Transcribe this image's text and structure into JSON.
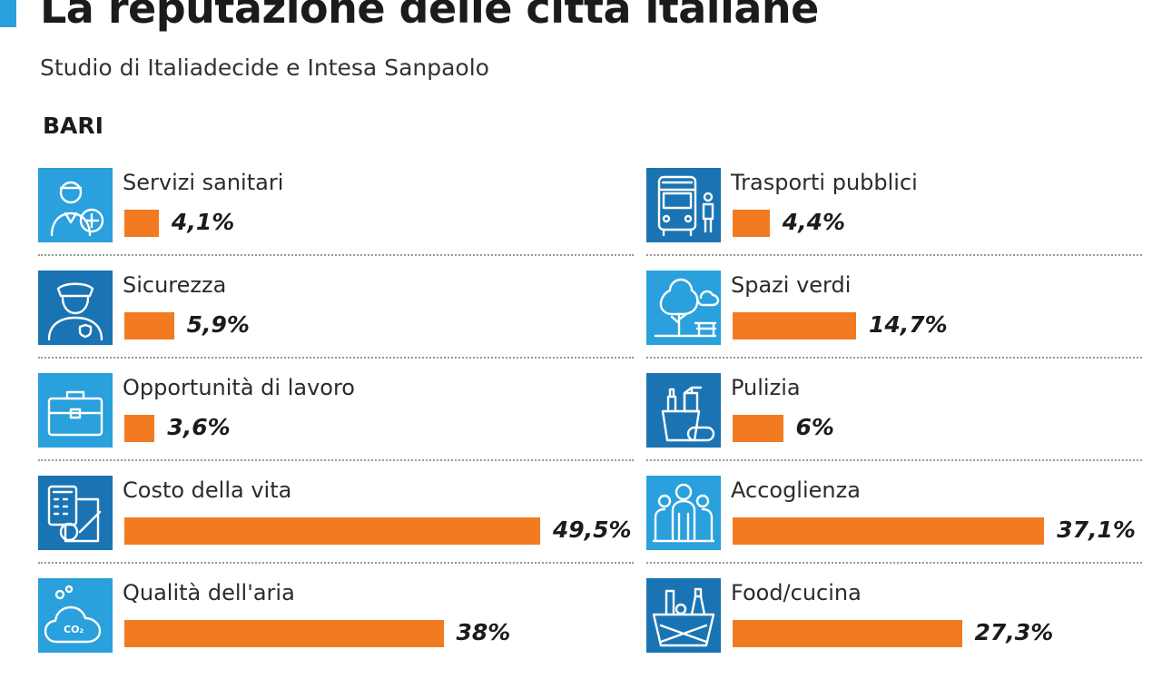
{
  "header": {
    "title": "La reputazione delle città italiane",
    "subtitle": "Studio di Italiadecide e Intesa Sanpaolo",
    "city": "BARI"
  },
  "colors": {
    "accent": "#2aa0dc",
    "bar": "#f27b21",
    "icon_light": "#2aa0dc",
    "icon_dark": "#1a74b3"
  },
  "chart_data": {
    "type": "bar",
    "title": "La reputazione delle città italiane",
    "subtitle": "Studio di Italiadecide e Intesa Sanpaolo",
    "unit": "%",
    "categories": [
      "Servizi sanitari",
      "Sicurezza",
      "Opportunità di lavoro",
      "Costo della vita",
      "Qualità dell'aria",
      "Trasporti pubblici",
      "Spazi verdi",
      "Pulizia",
      "Accoglienza",
      "Food/cucina"
    ],
    "values": [
      4.1,
      5.9,
      3.6,
      49.5,
      38,
      4.4,
      14.7,
      6,
      37.1,
      27.3
    ],
    "value_labels": [
      "4,1%",
      "5,9%",
      "3,6%",
      "49,5%",
      "38%",
      "4,4%",
      "14,7%",
      "6%",
      "37,1%",
      "27,3%"
    ],
    "xlim": [
      0,
      50
    ],
    "legend": "none",
    "grid": false
  },
  "items": {
    "left": [
      {
        "label": "Servizi sanitari",
        "icon": "doctor-icon",
        "tone": "light"
      },
      {
        "label": "Sicurezza",
        "icon": "police-officer-icon",
        "tone": "dark"
      },
      {
        "label": "Opportunità di lavoro",
        "icon": "briefcase-icon",
        "tone": "light"
      },
      {
        "label": "Costo della vita",
        "icon": "calculator-document-icon",
        "tone": "dark"
      },
      {
        "label": "Qualità dell'aria",
        "icon": "co2-cloud-icon",
        "tone": "light"
      }
    ],
    "right": [
      {
        "label": "Trasporti pubblici",
        "icon": "bus-icon",
        "tone": "dark"
      },
      {
        "label": "Spazi verdi",
        "icon": "park-tree-icon",
        "tone": "light"
      },
      {
        "label": "Pulizia",
        "icon": "cleaning-bucket-icon",
        "tone": "dark"
      },
      {
        "label": "Accoglienza",
        "icon": "people-group-icon",
        "tone": "light"
      },
      {
        "label": "Food/cucina",
        "icon": "food-basket-icon",
        "tone": "dark"
      }
    ]
  }
}
